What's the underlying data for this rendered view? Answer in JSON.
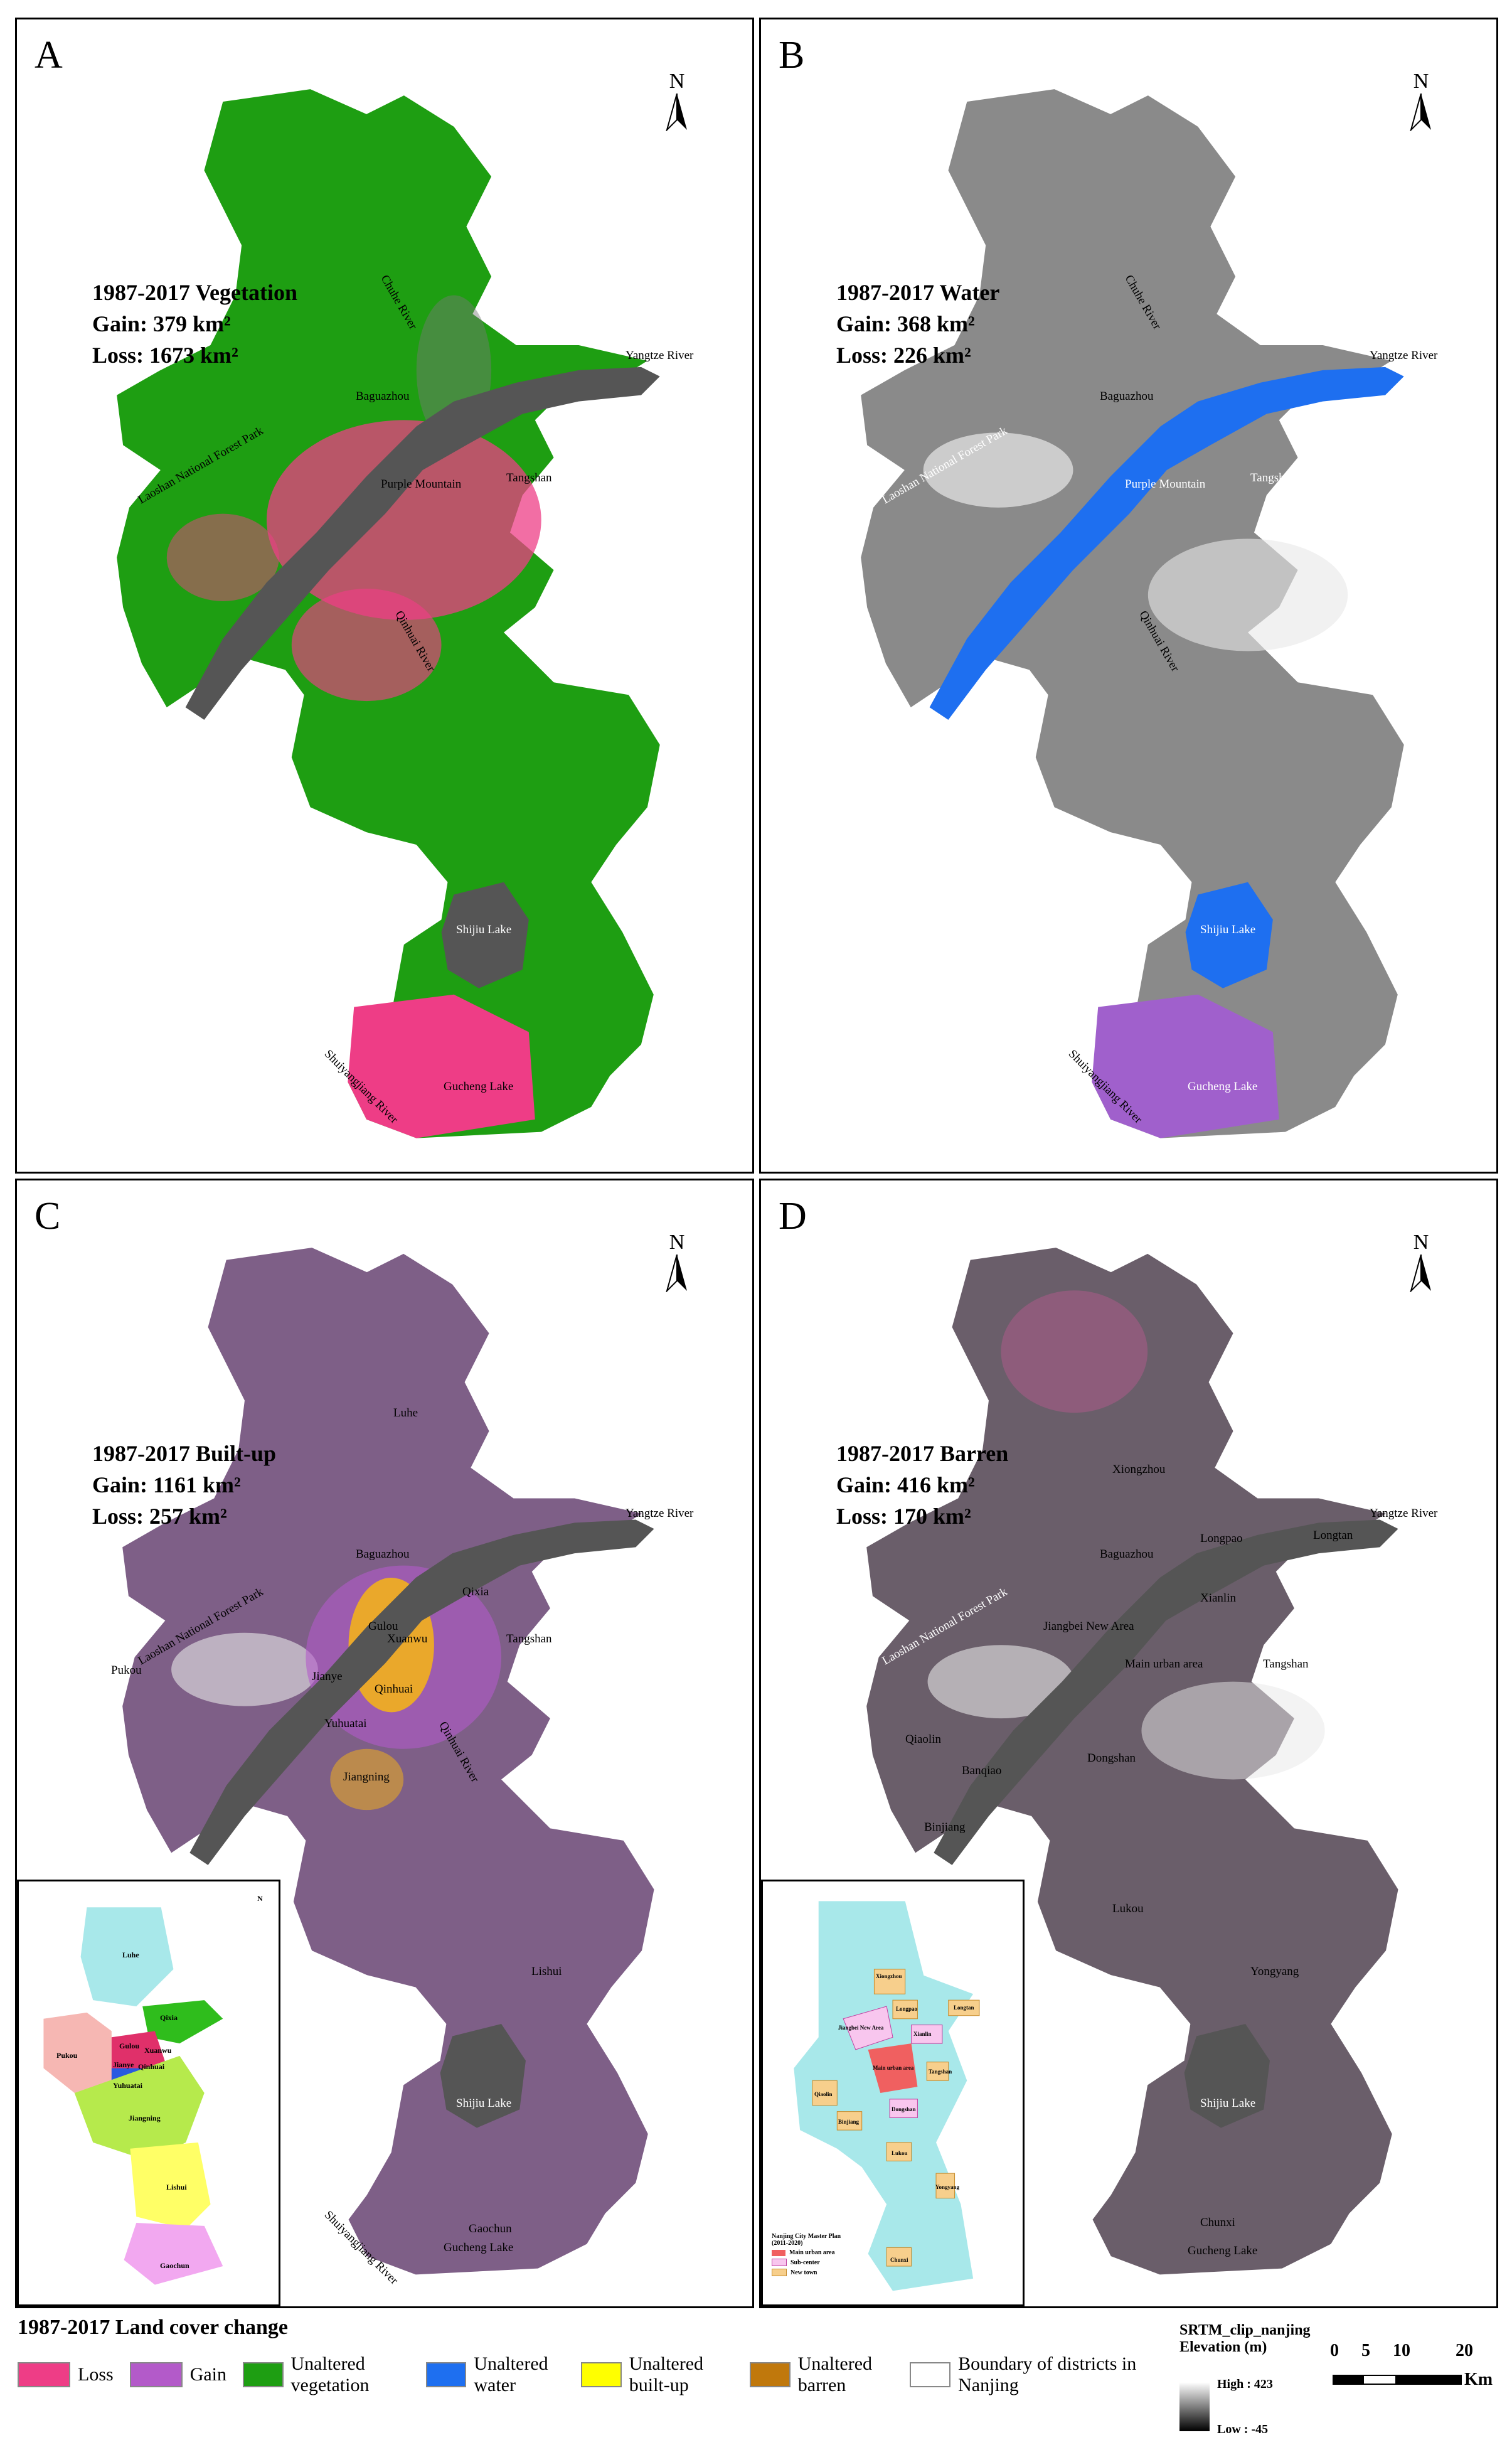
{
  "panels": [
    {
      "letter": "A",
      "title": "1987-2017 Vegetation",
      "gain": "Gain: 379 km²",
      "loss": "Loss: 1673 km²",
      "base": "#1e9e12",
      "overlay": "#ee3d86",
      "river": "#555"
    },
    {
      "letter": "B",
      "title": "1987-2017 Water",
      "gain": "Gain: 368 km²",
      "loss": "Loss: 226 km²",
      "base": "#8a8a8a",
      "overlay": "#1e6ff0",
      "river": "#1e6ff0"
    },
    {
      "letter": "C",
      "title": "1987-2017 Built-up",
      "gain": "Gain: 1161 km²",
      "loss": "Loss: 257 km²",
      "base": "#7e5f87",
      "overlay": "#f8b514",
      "river": "#555"
    },
    {
      "letter": "D",
      "title": "1987-2017 Barren",
      "gain": "Gain: 416 km²",
      "loss": "Loss: 170 km²",
      "base": "#6a5e6a",
      "overlay": "#555",
      "river": "#555"
    }
  ],
  "north": "N",
  "place_labels": {
    "a": [
      "Yangtze River",
      "Chuhe River",
      "Baguazhou",
      "Laoshan National Forest Park",
      "Purple Mountain",
      "Tangshan",
      "Qinhuai River",
      "Shijiu Lake",
      "Shuiyangjiang River",
      "Gucheng Lake"
    ],
    "c": [
      "Yangtze River",
      "Luhe",
      "Baguazhou",
      "Laoshan National Forest Park",
      "Pukou",
      "Qixia",
      "Gulou",
      "Xuanwu",
      "Qinhuai",
      "Jianye",
      "Yuhuatai",
      "Jiangning",
      "Qinhuai River",
      "Tangshan",
      "Lishui",
      "Shijiu Lake",
      "Gaochun",
      "Gucheng Lake",
      "Shuiyangjiang River"
    ],
    "d": [
      "Yangtze River",
      "Xiongzhou",
      "Longpao",
      "Longtan",
      "Baguazhou",
      "Laoshan National Forest Park",
      "Jiangbei New Area",
      "Xianlin",
      "Main urban area",
      "Tangshan",
      "Qiaolin",
      "Banqiao",
      "Dongshan",
      "Binjiang",
      "Lukou",
      "Yongyang",
      "Shijiu Lake",
      "Chunxi",
      "Gucheng Lake"
    ]
  },
  "inset_c": {
    "north": "N",
    "labels": [
      "Luhe",
      "Pukou",
      "Qixia",
      "Gulou",
      "Xuanwu",
      "Qinhuai",
      "Jianye",
      "Yuhuatai",
      "Jiangning",
      "Lishui",
      "Gaochun"
    ]
  },
  "inset_d": {
    "labels": [
      "Xiongzhou",
      "Jiangbei New Area",
      "Xianlin",
      "Longpao",
      "Longtan",
      "Main urban area",
      "Tangshan",
      "Qiaolin",
      "Dongshan",
      "Binjiang",
      "Lukou",
      "Yongyang",
      "Chunxi"
    ],
    "legend_title": "Nanjing City Master Plan",
    "legend_years": "(2011-2020)",
    "legend_items": [
      "Main urban area",
      "Sub-center",
      "New town"
    ]
  },
  "legend": {
    "title": "1987-2017 Land cover change",
    "items": [
      {
        "label": "Loss",
        "color": "#ee3d86"
      },
      {
        "label": "Gain",
        "color": "#b35ac9"
      },
      {
        "label": "Unaltered vegetation",
        "color": "#1e9e12"
      },
      {
        "label": "Unaltered water",
        "color": "#1e6ff0"
      },
      {
        "label": "Unaltered built-up",
        "color": "#ffff00"
      },
      {
        "label": "Unaltered barren",
        "color": "#c0780c"
      },
      {
        "label": "Boundary of districts in Nanjing",
        "color": "#ffffff"
      }
    ]
  },
  "elevation": {
    "title": "SRTM_clip_nanjing",
    "unit": "Elevation (m)",
    "high": "High : 423",
    "low": "Low : -45"
  },
  "scalebar": {
    "ticks": [
      "0",
      "5",
      "10",
      "20"
    ],
    "unit": "Km"
  }
}
